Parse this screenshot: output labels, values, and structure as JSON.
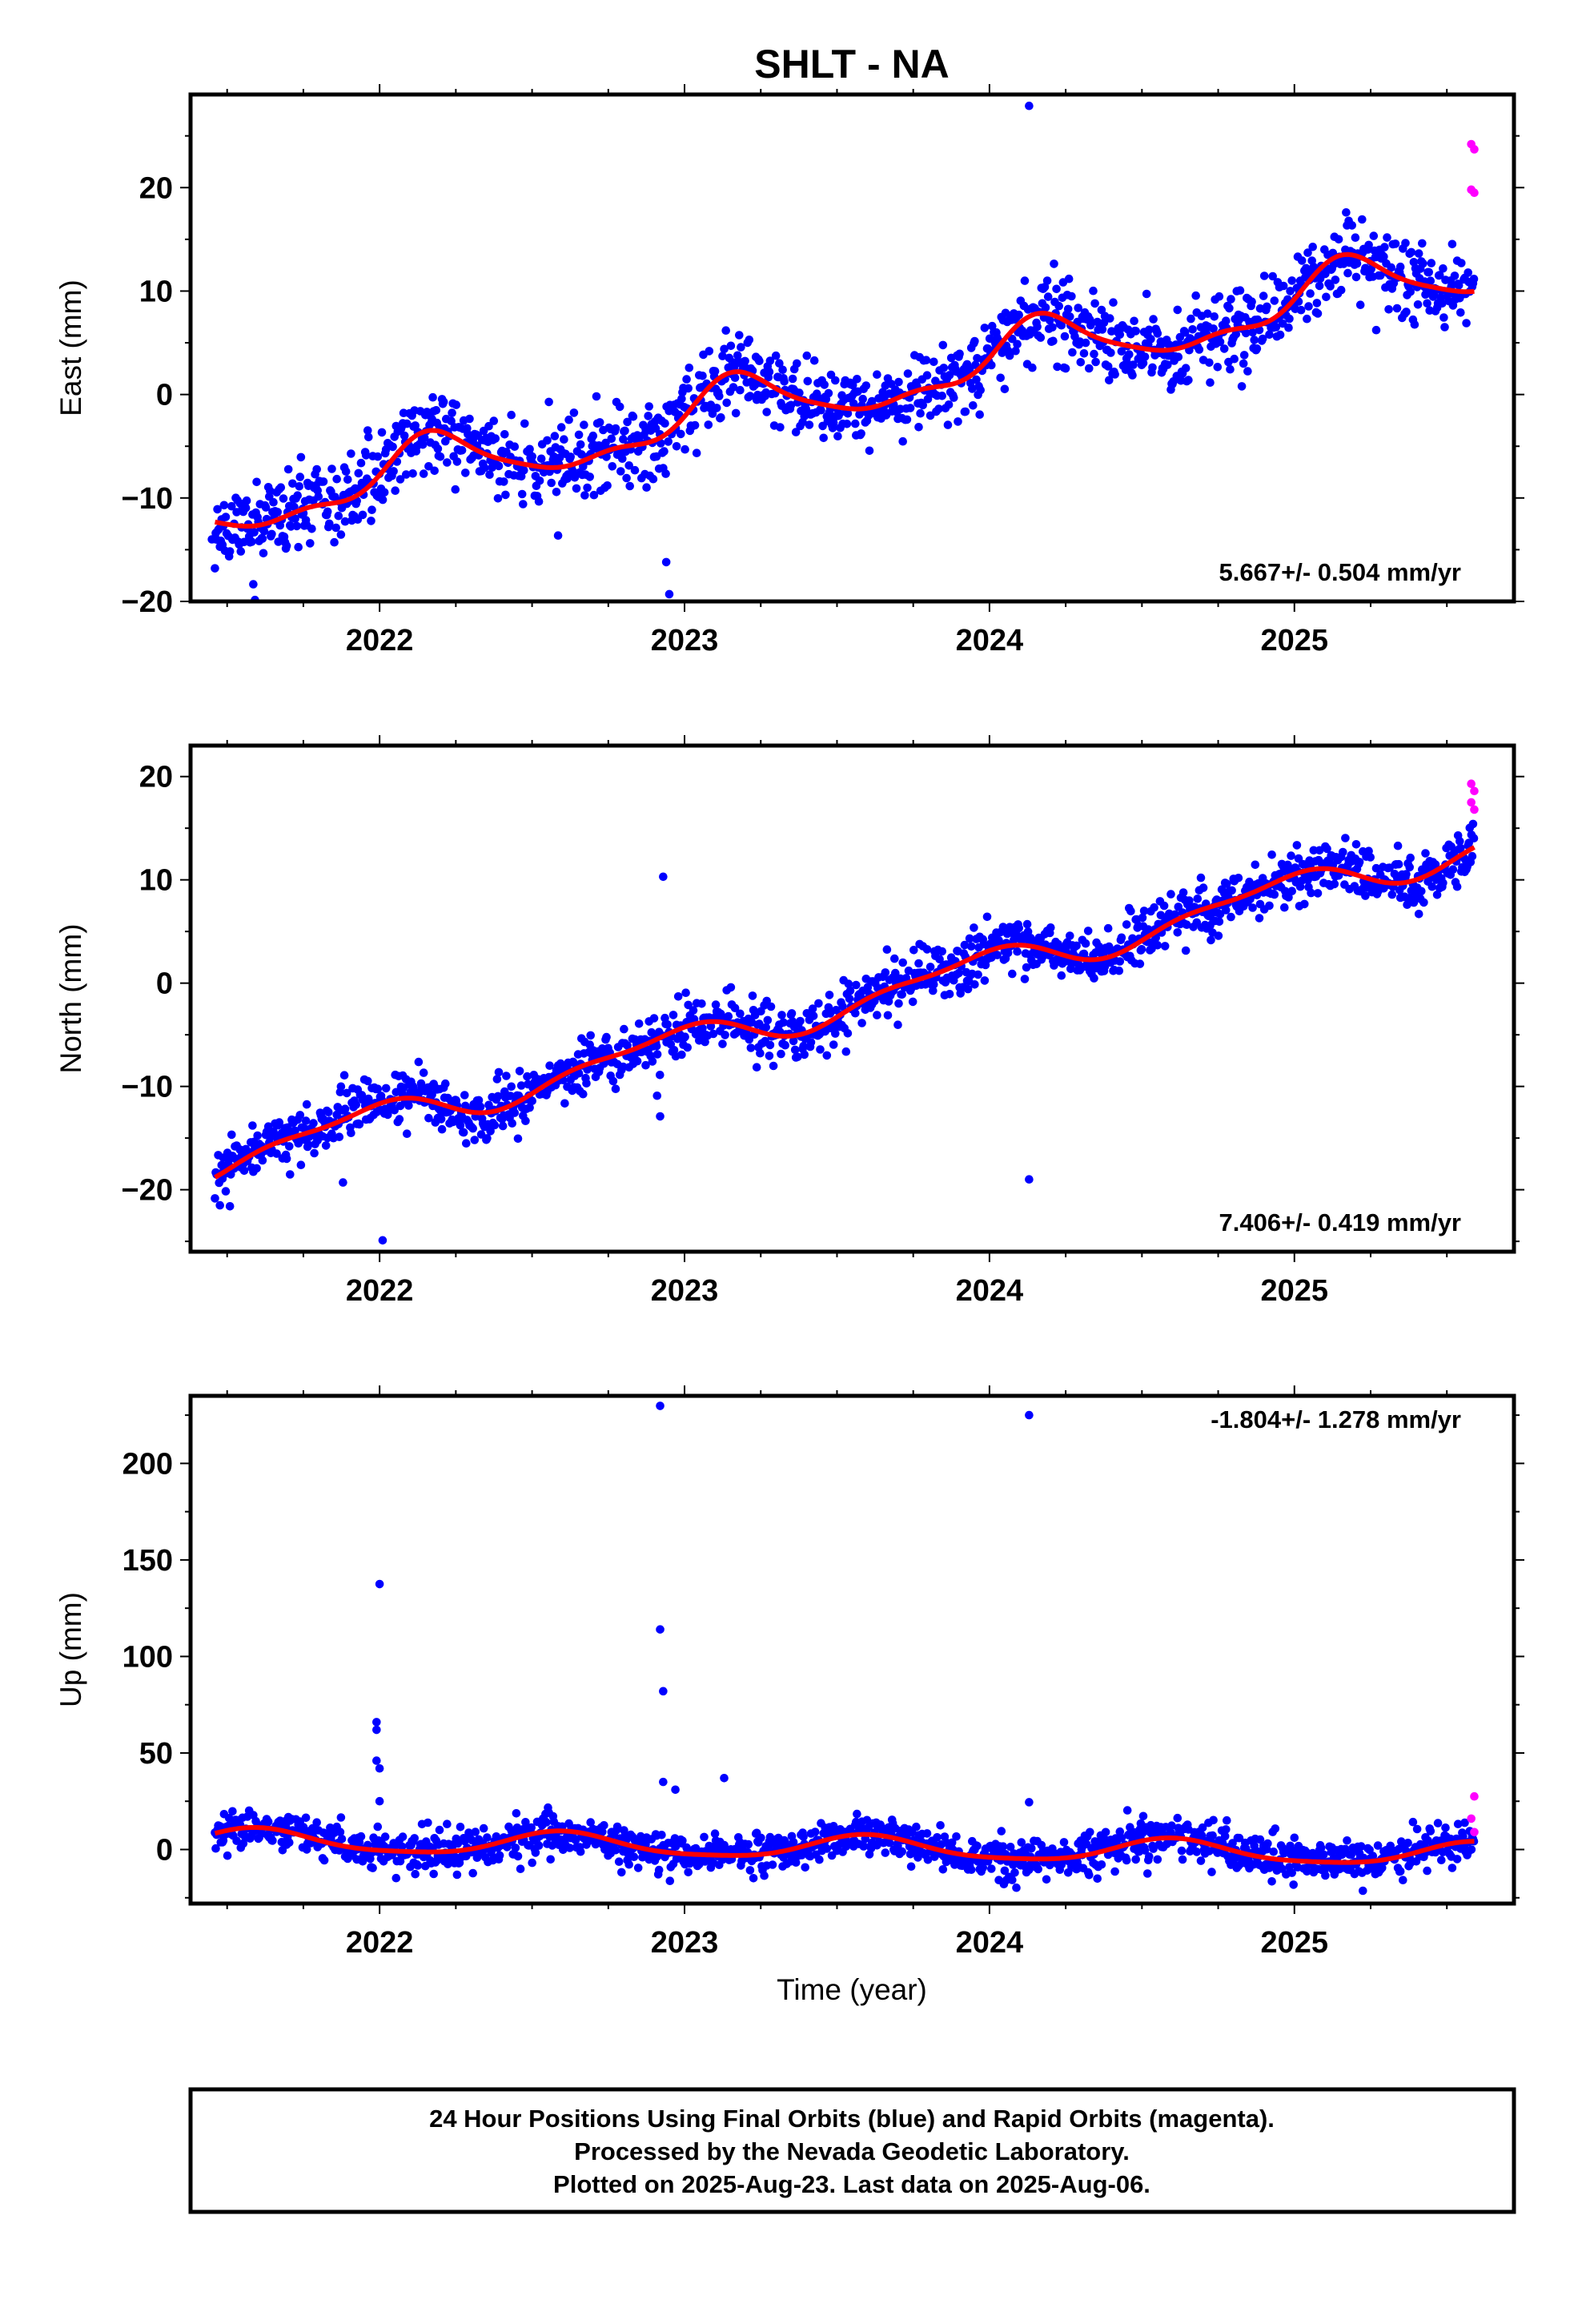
{
  "title": "SHLT - NA",
  "xlabel": "Time (year)",
  "footer": {
    "line1": "24 Hour Positions Using Final Orbits (blue) and Rapid Orbits (magenta).",
    "line2": "Processed by the Nevada Geodetic Laboratory.",
    "line3": "Plotted on 2025-Aug-23. Last data on 2025-Aug-06."
  },
  "colors": {
    "final": "#0000ff",
    "rapid": "#ff00ff",
    "fit": "#ff0000",
    "frame": "#000000"
  },
  "chart_data": [
    {
      "type": "scatter",
      "name": "east",
      "ylabel": "East (mm)",
      "rate_text": "5.667+/- 0.504 mm/yr",
      "rate_position": "bottom-right",
      "xlim": [
        2021.38,
        2025.72
      ],
      "ylim": [
        -20,
        29
      ],
      "x_ticks": [
        2022,
        2023,
        2024,
        2025
      ],
      "x_tick_labels": [
        "2022",
        "2023",
        "2024",
        "2025"
      ],
      "y_ticks": [
        -20,
        -10,
        0,
        10,
        20
      ],
      "y_tick_labels": [
        "−20",
        "−10",
        "0",
        "10",
        "20"
      ],
      "model": {
        "t0": 2023.5,
        "base": 0.3,
        "rate": 5.667,
        "terms": [
          [
            2.6,
            0.5,
            1
          ],
          [
            0.9,
            -0.65,
            2
          ],
          [
            0.4,
            -0.8,
            3
          ]
        ],
        "noise": 1.9,
        "seed": 11
      },
      "first_x": 2021.46,
      "last_x": 2025.59,
      "outliers": [
        [
          2021.46,
          -16.8
        ],
        [
          2022.94,
          -16.2
        ],
        [
          2022.95,
          -19.3
        ],
        [
          2024.13,
          27.9
        ],
        [
          2021.45,
          -14.0
        ]
      ],
      "rapid_points": [
        [
          2025.58,
          24.2
        ],
        [
          2025.59,
          23.7
        ],
        [
          2025.58,
          19.8
        ],
        [
          2025.59,
          19.5
        ]
      ]
    },
    {
      "type": "scatter",
      "name": "north",
      "ylabel": "North (mm)",
      "rate_text": "7.406+/- 0.419 mm/yr",
      "rate_position": "bottom-right",
      "xlim": [
        2021.38,
        2025.72
      ],
      "ylim": [
        -26,
        23
      ],
      "x_ticks": [
        2022,
        2023,
        2024,
        2025
      ],
      "x_tick_labels": [
        "2022",
        "2023",
        "2024",
        "2025"
      ],
      "y_ticks": [
        -20,
        -10,
        0,
        10,
        20
      ],
      "y_tick_labels": [
        "−20",
        "−10",
        "0",
        "10",
        "20"
      ],
      "model": {
        "t0": 2023.5,
        "base": -2.1,
        "rate": 7.406,
        "terms": [
          [
            1.5,
            2.0,
            1
          ],
          [
            0.6,
            0.3,
            2
          ]
        ],
        "noise": 1.3,
        "seed": 23
      },
      "first_x": 2021.46,
      "last_x": 2025.59,
      "outliers": [
        [
          2022.01,
          -24.9
        ],
        [
          2022.93,
          10.3
        ],
        [
          2022.92,
          -12.9
        ],
        [
          2022.91,
          -10.9
        ],
        [
          2024.13,
          -19.0
        ],
        [
          2021.88,
          -19.3
        ]
      ],
      "rapid_points": [
        [
          2025.58,
          19.3
        ],
        [
          2025.59,
          18.6
        ],
        [
          2025.58,
          17.5
        ],
        [
          2025.59,
          16.8
        ]
      ]
    },
    {
      "type": "scatter",
      "name": "up",
      "ylabel": "Up (mm)",
      "rate_text": "-1.804+/- 1.278 mm/yr",
      "rate_position": "top-right",
      "xlim": [
        2021.38,
        2025.72
      ],
      "ylim": [
        -28,
        235
      ],
      "x_ticks": [
        2022,
        2023,
        2024,
        2025
      ],
      "x_tick_labels": [
        "2022",
        "2023",
        "2024",
        "2025"
      ],
      "y_ticks": [
        0,
        50,
        100,
        150,
        200
      ],
      "y_tick_labels": [
        "0",
        "50",
        "100",
        "150",
        "200"
      ],
      "model": {
        "t0": 2023.5,
        "base": 1.0,
        "rate": -1.804,
        "terms": [
          [
            5.8,
            -2.2,
            1
          ],
          [
            1.2,
            0.5,
            2
          ]
        ],
        "noise": 5.2,
        "seed": 37
      },
      "first_x": 2021.46,
      "last_x": 2025.59,
      "outliers": [
        [
          2022.0,
          137.5
        ],
        [
          2021.99,
          66.0
        ],
        [
          2021.99,
          62.0
        ],
        [
          2021.99,
          46.0
        ],
        [
          2022.0,
          42.0
        ],
        [
          2022.0,
          25.0
        ],
        [
          2022.92,
          229.8
        ],
        [
          2022.92,
          114.0
        ],
        [
          2022.93,
          82.0
        ],
        [
          2022.93,
          35.0
        ],
        [
          2022.97,
          31.0
        ],
        [
          2023.13,
          37.0
        ],
        [
          2024.13,
          225.0
        ],
        [
          2024.13,
          24.5
        ]
      ],
      "rapid_points": [
        [
          2025.59,
          27.5
        ],
        [
          2025.58,
          16.0
        ],
        [
          2025.59,
          9.0
        ]
      ]
    }
  ]
}
